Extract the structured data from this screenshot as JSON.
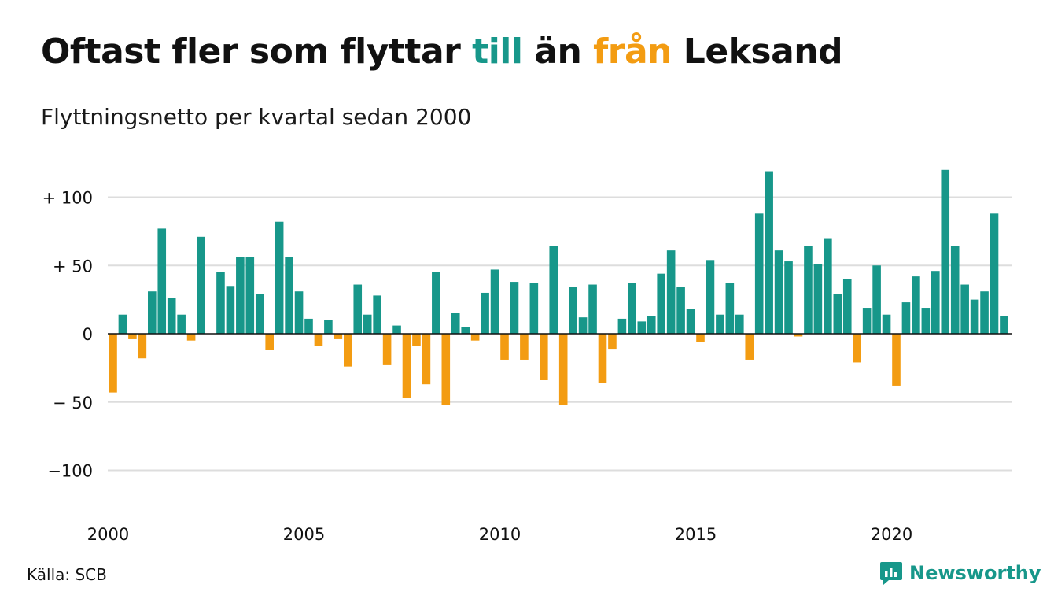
{
  "header": {
    "title_prefix": "Oftast fler som flyttar ",
    "title_till": "till",
    "title_middle": " än ",
    "title_fran": "från",
    "title_suffix": " Leksand",
    "subtitle": "Flyttningsnetto per kvartal sedan 2000"
  },
  "footer": {
    "source": "Källa: SCB",
    "brand": "Newsworthy"
  },
  "colors": {
    "positive": "#17978a",
    "negative": "#f39c12",
    "grid": "#dddddd",
    "zero_line": "#111111"
  },
  "chart_data": {
    "type": "bar",
    "x_start": 2000,
    "x_step": "quarter",
    "x_tick_labels": [
      "2000",
      "2005",
      "2010",
      "2015",
      "2020"
    ],
    "y_ticks": [
      100,
      50,
      0,
      -50,
      -100
    ],
    "y_tick_labels": [
      "+ 100",
      "+  50",
      "0",
      "− 50",
      "−100"
    ],
    "ylim": [
      -110,
      120
    ],
    "grid": true,
    "values": [
      -43,
      14,
      -4,
      -18,
      31,
      77,
      26,
      14,
      -5,
      71,
      0,
      45,
      35,
      56,
      56,
      29,
      -12,
      82,
      56,
      31,
      11,
      -9,
      10,
      -4,
      -24,
      36,
      14,
      28,
      -23,
      6,
      -47,
      -9,
      -37,
      45,
      -52,
      15,
      5,
      -5,
      30,
      47,
      -19,
      38,
      -19,
      37,
      -34,
      64,
      -52,
      34,
      12,
      36,
      -36,
      -11,
      11,
      37,
      9,
      13,
      44,
      61,
      34,
      18,
      -6,
      54,
      14,
      37,
      14,
      -19,
      88,
      119,
      61,
      53,
      -2,
      64,
      51,
      70,
      29,
      40,
      -21,
      19,
      50,
      14,
      -38,
      23,
      42,
      19,
      46,
      120,
      64,
      36,
      25,
      31,
      88,
      13
    ]
  }
}
